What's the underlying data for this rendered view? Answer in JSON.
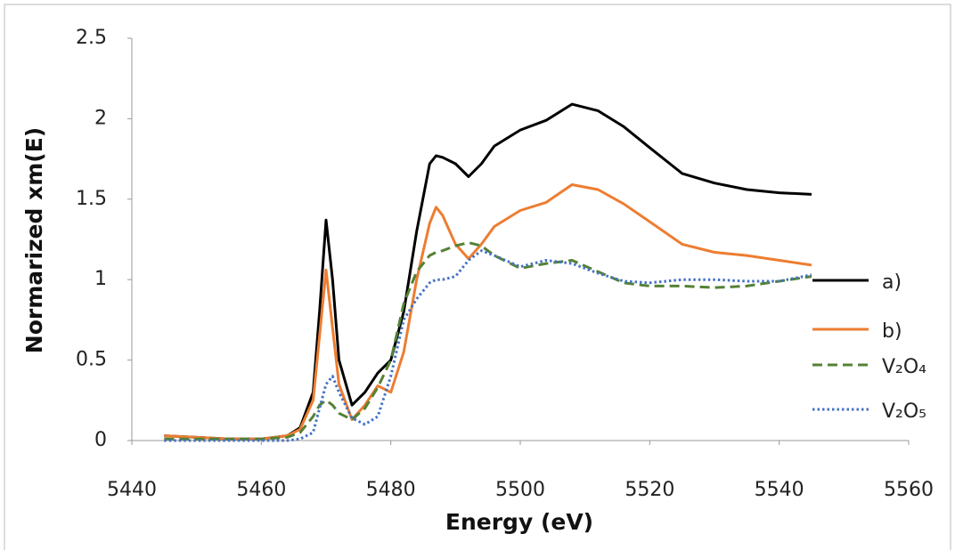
{
  "chart_data": {
    "type": "line",
    "xlabel": "Energy (eV)",
    "ylabel": "Normarized xm(E)",
    "x": [
      5445,
      5450,
      5455,
      5460,
      5464,
      5466,
      5468,
      5469,
      5470,
      5471,
      5472,
      5474,
      5476,
      5478,
      5480,
      5482,
      5484,
      5486,
      5487,
      5488,
      5490,
      5492,
      5494,
      5496,
      5500,
      5504,
      5508,
      5512,
      5516,
      5520,
      5525,
      5530,
      5535,
      5540,
      5545
    ],
    "series": [
      {
        "name": "a)",
        "color": "#000000",
        "linestyle": "solid",
        "values": [
          0.03,
          0.02,
          0.01,
          0.01,
          0.03,
          0.08,
          0.3,
          0.8,
          1.37,
          1.0,
          0.5,
          0.22,
          0.3,
          0.42,
          0.5,
          0.8,
          1.3,
          1.72,
          1.77,
          1.76,
          1.72,
          1.64,
          1.72,
          1.83,
          1.93,
          1.99,
          2.09,
          2.05,
          1.95,
          1.82,
          1.66,
          1.6,
          1.56,
          1.54,
          1.53
        ]
      },
      {
        "name": "b)",
        "color": "#ed7d31",
        "linestyle": "solid",
        "values": [
          0.03,
          0.02,
          0.01,
          0.01,
          0.03,
          0.07,
          0.25,
          0.65,
          1.06,
          0.7,
          0.35,
          0.13,
          0.22,
          0.34,
          0.3,
          0.55,
          1.0,
          1.35,
          1.45,
          1.4,
          1.22,
          1.13,
          1.22,
          1.33,
          1.43,
          1.48,
          1.59,
          1.56,
          1.47,
          1.36,
          1.22,
          1.17,
          1.15,
          1.12,
          1.09
        ]
      },
      {
        "name": "V₂O₄",
        "color": "#548235",
        "linestyle": "dashed",
        "values": [
          0.01,
          0.01,
          0.01,
          0.01,
          0.02,
          0.05,
          0.15,
          0.22,
          0.25,
          0.22,
          0.17,
          0.13,
          0.2,
          0.33,
          0.5,
          0.85,
          1.05,
          1.15,
          1.17,
          1.18,
          1.21,
          1.23,
          1.21,
          1.15,
          1.07,
          1.1,
          1.12,
          1.05,
          0.98,
          0.96,
          0.96,
          0.95,
          0.96,
          0.99,
          1.02
        ]
      },
      {
        "name": "V₂O₅",
        "color": "#4472c4",
        "linestyle": "dotted",
        "values": [
          0,
          0,
          0,
          0,
          0,
          0.01,
          0.05,
          0.2,
          0.35,
          0.4,
          0.3,
          0.14,
          0.1,
          0.15,
          0.4,
          0.75,
          0.88,
          0.98,
          1.0,
          1.0,
          1.02,
          1.12,
          1.18,
          1.15,
          1.08,
          1.12,
          1.1,
          1.04,
          0.99,
          0.98,
          1.0,
          1.0,
          0.99,
          0.99,
          1.03
        ]
      }
    ],
    "xlim": [
      5440,
      5560
    ],
    "xticks": [
      5440,
      5460,
      5480,
      5500,
      5520,
      5540,
      5560
    ],
    "ylim": [
      0,
      2.5
    ],
    "yticks": [
      0,
      0.5,
      1,
      1.5,
      2,
      2.5
    ],
    "grid": false,
    "legend": "right"
  }
}
